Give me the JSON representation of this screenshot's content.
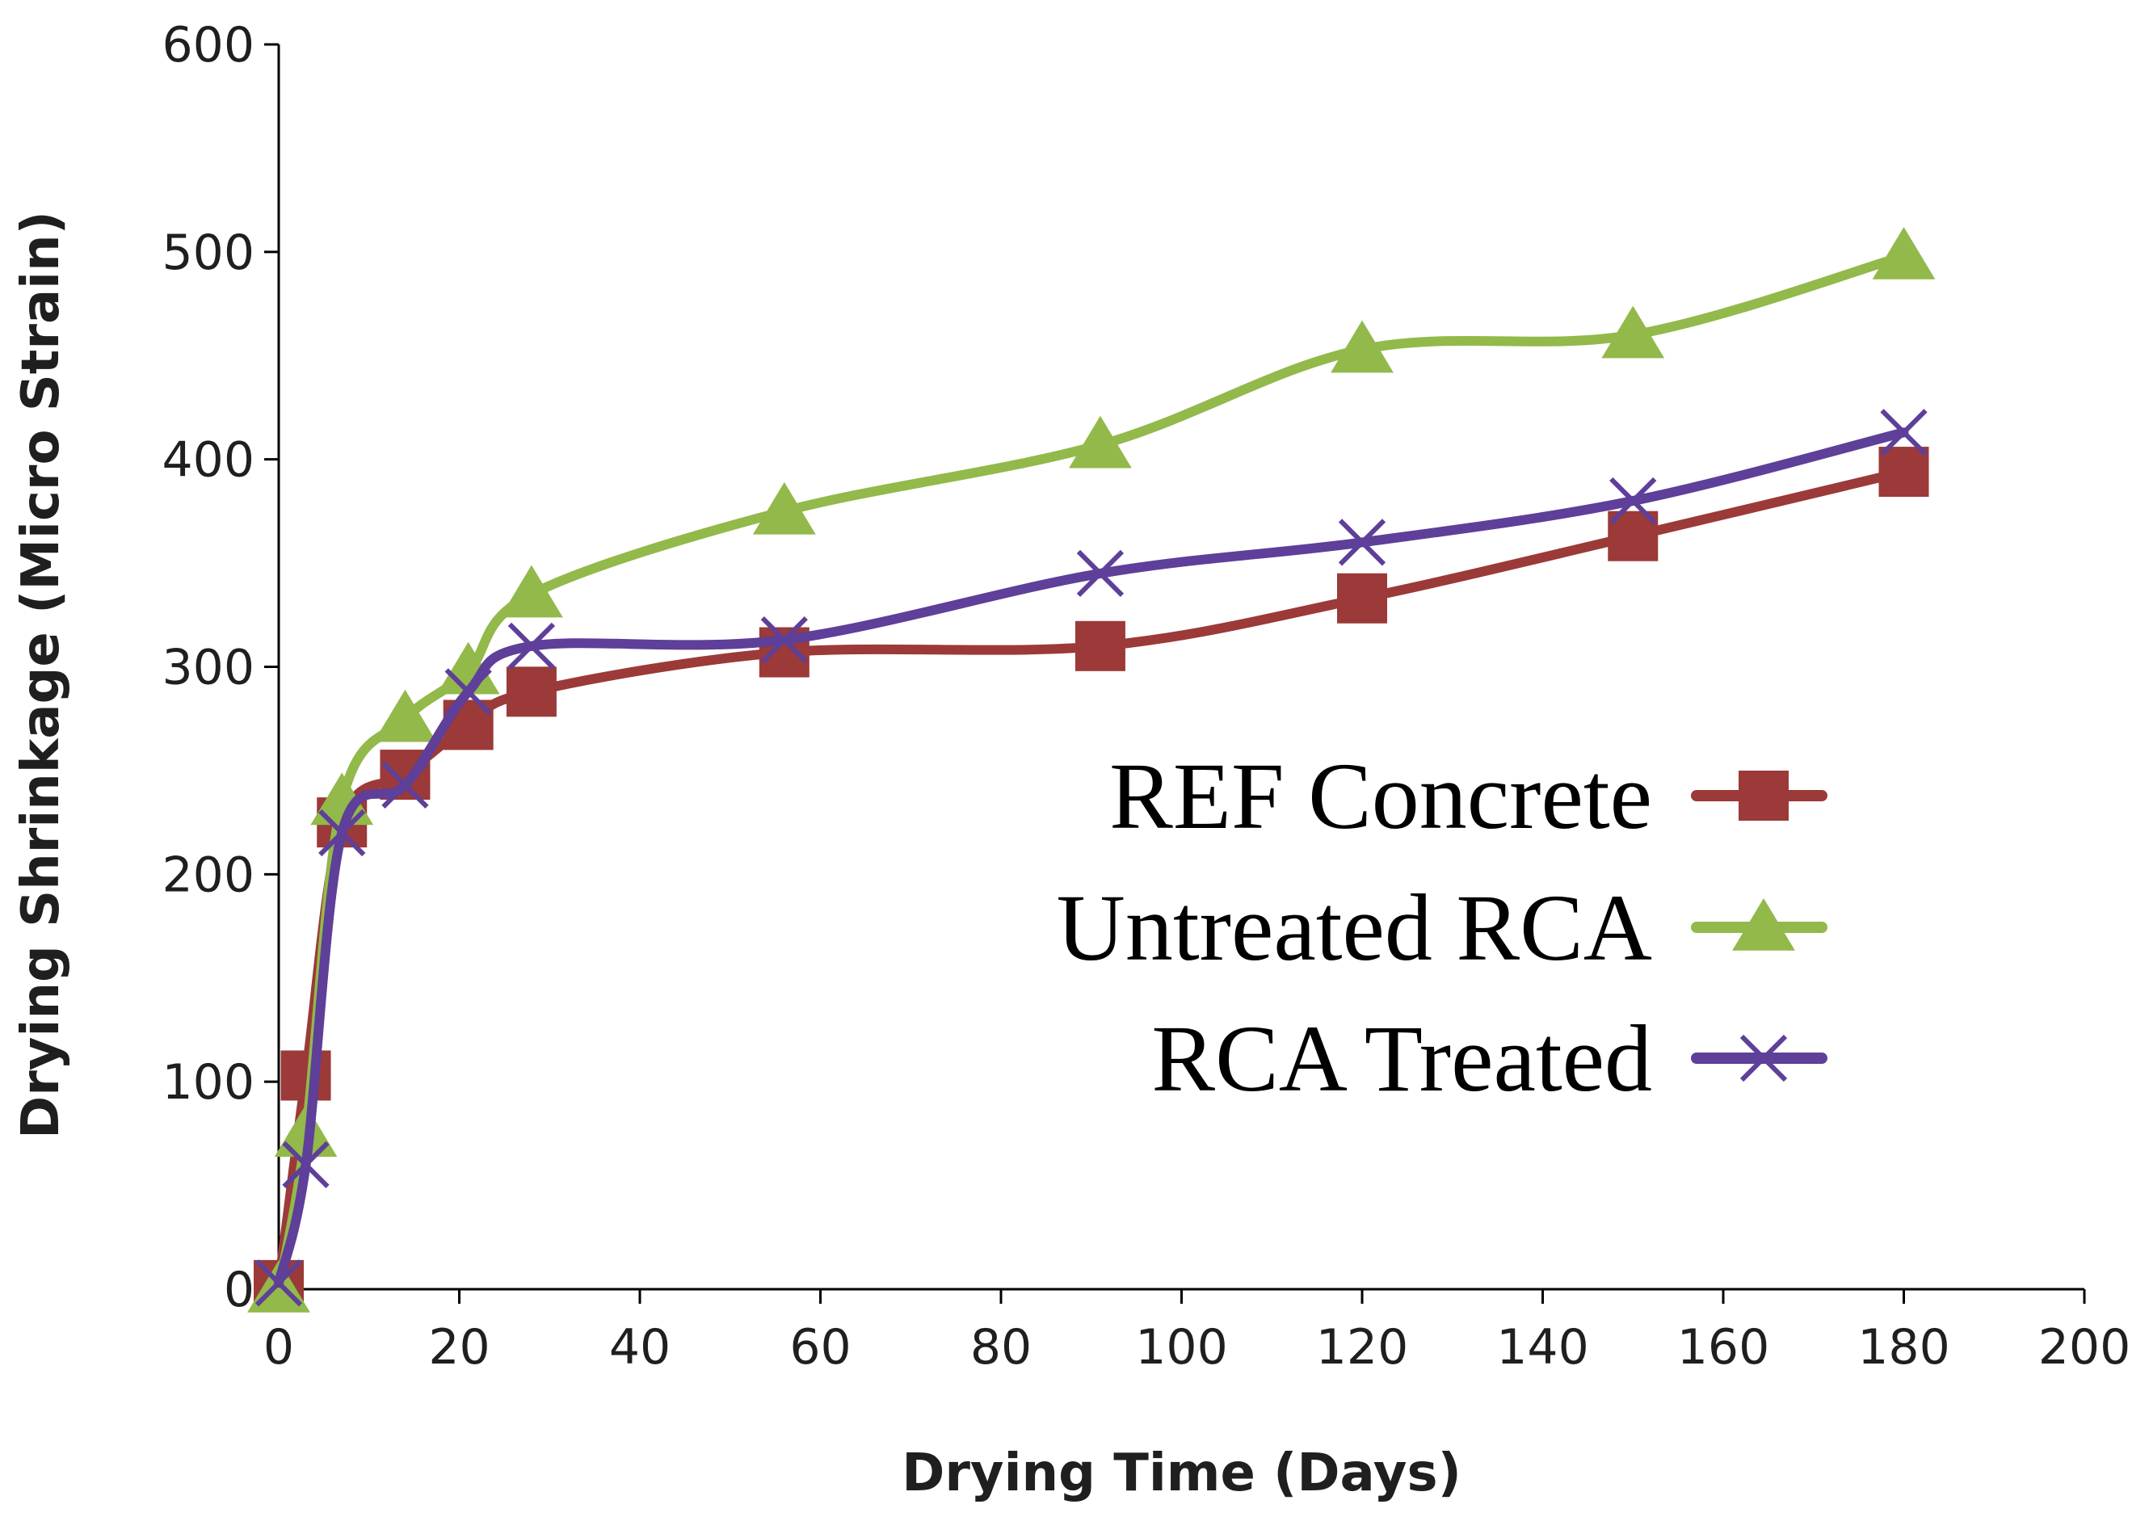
{
  "chart_data": {
    "type": "line",
    "title": "",
    "xlabel": "Drying Time (Days)",
    "ylabel": "Drying Shrinkage (Micro Strain)",
    "xlim": [
      0,
      200
    ],
    "ylim": [
      0,
      600
    ],
    "xticks": [
      0,
      20,
      40,
      60,
      80,
      100,
      120,
      140,
      160,
      180,
      200
    ],
    "yticks": [
      0,
      100,
      200,
      300,
      400,
      500,
      600
    ],
    "grid": false,
    "legend_position": "center-right",
    "series": [
      {
        "name": "REF Concrete",
        "color": "#9b3a38",
        "marker": "square",
        "x": [
          0,
          3,
          7,
          14,
          21,
          28,
          56,
          91,
          120,
          150,
          180
        ],
        "y": [
          2,
          103,
          225,
          248,
          272,
          288,
          307,
          310,
          333,
          363,
          394
        ]
      },
      {
        "name": "Untreated RCA",
        "color": "#92b94a",
        "marker": "triangle",
        "x": [
          0,
          3,
          7,
          14,
          21,
          28,
          56,
          91,
          120,
          150,
          180
        ],
        "y": [
          0,
          75,
          235,
          275,
          298,
          335,
          375,
          407,
          453,
          460,
          498
        ]
      },
      {
        "name": "RCA Treated",
        "color": "#5e3f99",
        "marker": "x",
        "x": [
          0,
          3,
          7,
          14,
          21,
          28,
          56,
          91,
          120,
          150,
          180
        ],
        "y": [
          3,
          60,
          220,
          243,
          288,
          310,
          313,
          345,
          360,
          380,
          413
        ]
      }
    ]
  }
}
